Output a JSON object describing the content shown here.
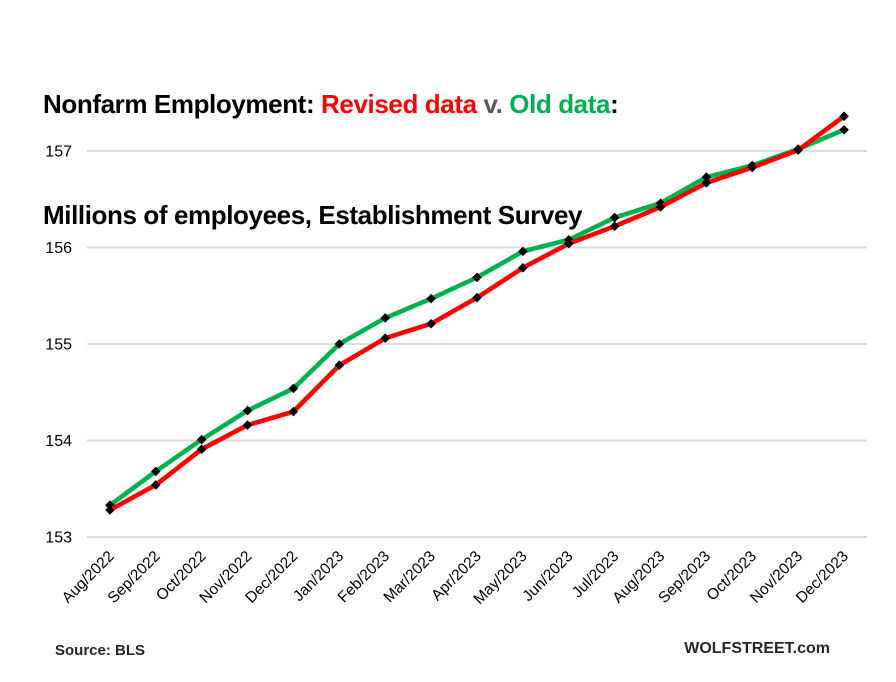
{
  "title": {
    "parts": [
      {
        "text": "Nonfarm Employment: ",
        "color": "#000000"
      },
      {
        "text": "Revised data",
        "color": "#ff0000"
      },
      {
        "text": " v. ",
        "color": "#595959"
      },
      {
        "text": "Old data",
        "color": "#00b050"
      },
      {
        "text": ":",
        "color": "#000000"
      }
    ],
    "line2": "Millions of employees, Establishment Survey"
  },
  "footer": {
    "source": "Source: BLS",
    "site": "WOLFSTREET.com"
  },
  "colors": {
    "revised": "#ff0000",
    "old": "#00b050",
    "marker": "#000000",
    "gridline": "#d9d9d9",
    "axis_text": "#000000"
  },
  "chart_data": {
    "type": "line",
    "title": "Nonfarm Employment: Revised data v. Old data: Millions of employees, Establishment Survey",
    "xlabel": "",
    "ylabel": "",
    "categories": [
      "Aug/2022",
      "Sep/2022",
      "Oct/2022",
      "Nov/2022",
      "Dec/2022",
      "Jan/2023",
      "Feb/2023",
      "Mar/2023",
      "Apr/2023",
      "May/2023",
      "Jun/2023",
      "Jul/2023",
      "Aug/2023",
      "Sep/2023",
      "Oct/2023",
      "Nov/2023",
      "Dec/2023"
    ],
    "series": [
      {
        "name": "Revised data",
        "color": "#ff0000",
        "values": [
          153.28,
          153.54,
          153.91,
          154.16,
          154.3,
          154.78,
          155.06,
          155.21,
          155.48,
          155.79,
          156.04,
          156.22,
          156.42,
          156.67,
          156.83,
          157.01,
          157.36
        ]
      },
      {
        "name": "Old data",
        "color": "#00b050",
        "values": [
          153.33,
          153.68,
          154.01,
          154.31,
          154.54,
          155.0,
          155.27,
          155.47,
          155.69,
          155.96,
          156.08,
          156.31,
          156.46,
          156.73,
          156.85,
          157.02,
          157.22
        ]
      }
    ],
    "ylim": [
      153,
      157.425
    ],
    "yticks": [
      153,
      154,
      155,
      156,
      157
    ],
    "grid": true,
    "legend_position": "in-title",
    "marker": "diamond",
    "marker_color": "#000000",
    "gridline_color": "#d9d9d9"
  }
}
